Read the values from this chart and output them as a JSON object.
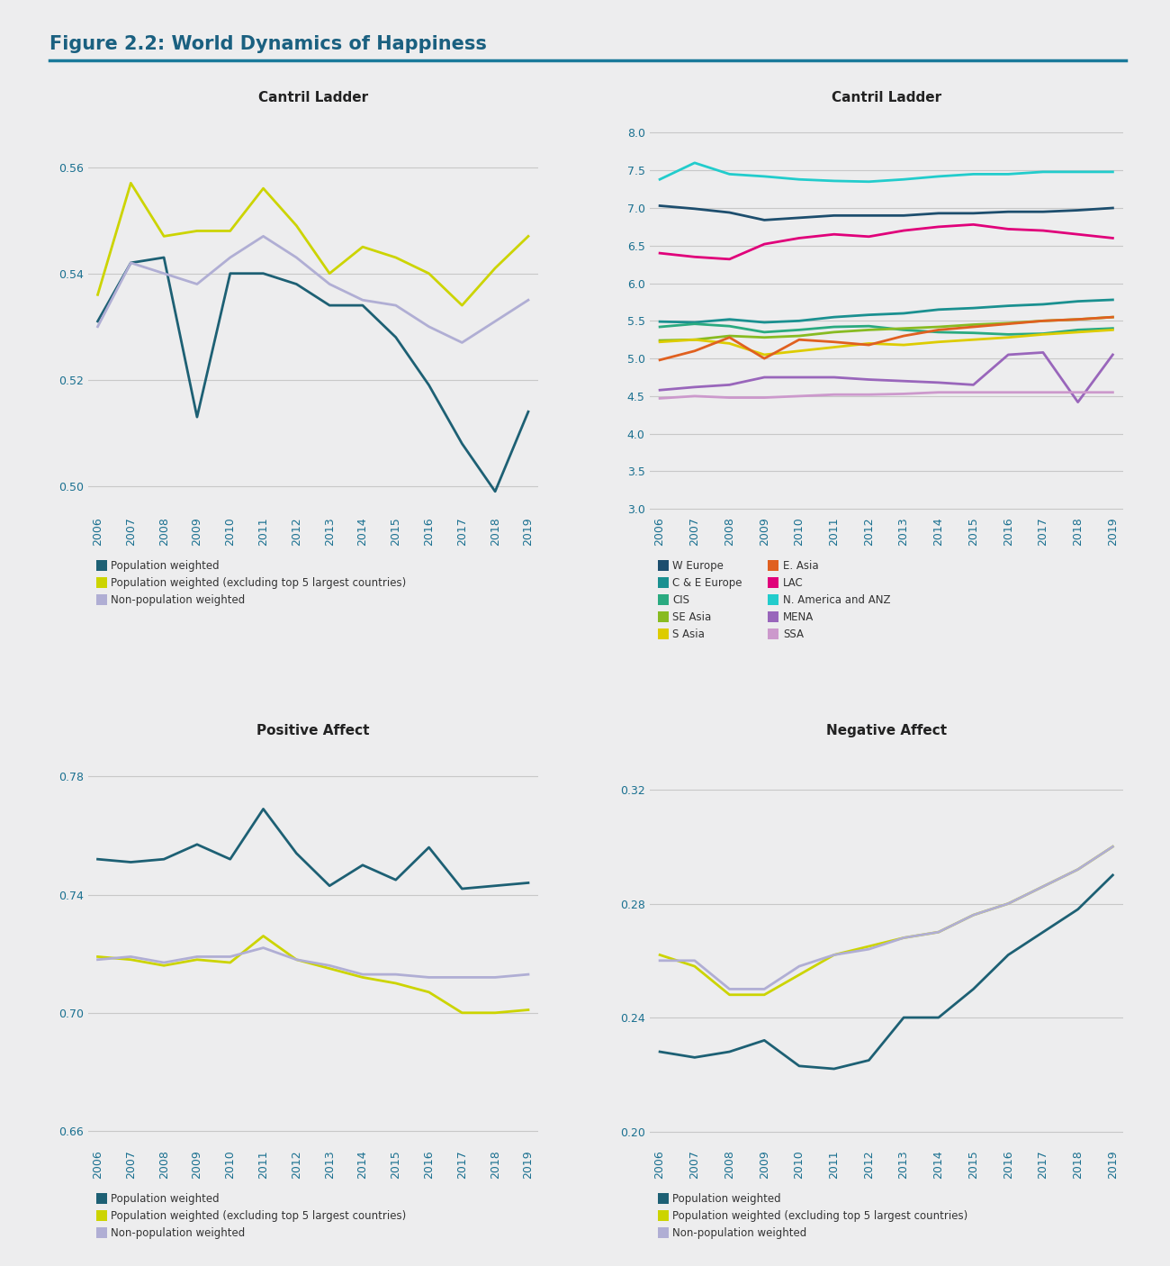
{
  "title": "Figure 2.2: World Dynamics of Happiness",
  "title_color": "#1a6080",
  "background_color": "#ededee",
  "plot_bg_color": "#ededee",
  "years_14": [
    2006,
    2007,
    2008,
    2009,
    2010,
    2011,
    2012,
    2013,
    2014,
    2015,
    2016,
    2017,
    2018,
    2019
  ],
  "cantril_left": {
    "title": "Cantril Ladder",
    "pop_weighted": [
      0.531,
      0.542,
      0.543,
      0.513,
      0.54,
      0.54,
      0.538,
      0.534,
      0.534,
      0.528,
      0.519,
      0.508,
      0.499,
      0.514
    ],
    "pop_weighted_ex5": [
      0.536,
      0.557,
      0.547,
      0.548,
      0.548,
      0.556,
      0.549,
      0.54,
      0.545,
      0.543,
      0.54,
      0.534,
      0.541,
      0.547
    ],
    "non_pop_weighted": [
      0.53,
      0.542,
      0.54,
      0.538,
      0.543,
      0.547,
      0.543,
      0.538,
      0.535,
      0.534,
      0.53,
      0.527,
      0.531,
      0.535
    ],
    "ylim": [
      0.495,
      0.57
    ],
    "yticks": [
      0.5,
      0.52,
      0.54,
      0.56
    ]
  },
  "cantril_right": {
    "title": "Cantril Ladder",
    "w_europe": [
      7.03,
      6.99,
      6.94,
      6.84,
      6.87,
      6.9,
      6.9,
      6.9,
      6.93,
      6.93,
      6.95,
      6.95,
      6.97,
      7.0
    ],
    "c_e_europe": [
      5.49,
      5.48,
      5.52,
      5.48,
      5.5,
      5.55,
      5.58,
      5.6,
      5.65,
      5.67,
      5.7,
      5.72,
      5.76,
      5.78
    ],
    "cis": [
      5.42,
      5.46,
      5.43,
      5.35,
      5.38,
      5.42,
      5.43,
      5.38,
      5.35,
      5.34,
      5.32,
      5.33,
      5.38,
      5.4
    ],
    "se_asia": [
      5.24,
      5.25,
      5.3,
      5.28,
      5.3,
      5.35,
      5.38,
      5.4,
      5.42,
      5.45,
      5.47,
      5.5,
      5.52,
      5.55
    ],
    "s_asia": [
      5.22,
      5.25,
      5.2,
      5.05,
      5.1,
      5.15,
      5.2,
      5.18,
      5.22,
      5.25,
      5.28,
      5.32,
      5.35,
      5.38
    ],
    "e_asia": [
      4.98,
      5.1,
      5.28,
      5.0,
      5.25,
      5.22,
      5.18,
      5.3,
      5.38,
      5.42,
      5.46,
      5.5,
      5.52,
      5.55
    ],
    "lac": [
      6.4,
      6.35,
      6.32,
      6.52,
      6.6,
      6.65,
      6.62,
      6.7,
      6.75,
      6.78,
      6.72,
      6.7,
      6.65,
      6.6
    ],
    "n_america_anz": [
      7.38,
      7.6,
      7.45,
      7.42,
      7.38,
      7.36,
      7.35,
      7.38,
      7.42,
      7.45,
      7.45,
      7.48,
      7.48,
      7.48
    ],
    "mena": [
      4.58,
      4.62,
      4.65,
      4.75,
      4.75,
      4.75,
      4.72,
      4.7,
      4.68,
      4.65,
      5.05,
      5.08,
      4.42,
      5.05
    ],
    "ssa": [
      4.47,
      4.5,
      4.48,
      4.48,
      4.5,
      4.52,
      4.52,
      4.53,
      4.55,
      4.55,
      4.55,
      4.55,
      4.55,
      4.55
    ],
    "ylim": [
      2.95,
      8.25
    ],
    "yticks": [
      3.0,
      3.5,
      4.0,
      4.5,
      5.0,
      5.5,
      6.0,
      6.5,
      7.0,
      7.5,
      8.0
    ]
  },
  "positive_affect": {
    "title": "Positive Affect",
    "pop_weighted": [
      0.752,
      0.751,
      0.752,
      0.757,
      0.752,
      0.769,
      0.754,
      0.743,
      0.75,
      0.745,
      0.756,
      0.742,
      0.743,
      0.744
    ],
    "pop_weighted_ex5": [
      0.719,
      0.718,
      0.716,
      0.718,
      0.717,
      0.726,
      0.718,
      0.715,
      0.712,
      0.71,
      0.707,
      0.7,
      0.7,
      0.701
    ],
    "non_pop_weighted": [
      0.718,
      0.719,
      0.717,
      0.719,
      0.719,
      0.722,
      0.718,
      0.716,
      0.713,
      0.713,
      0.712,
      0.712,
      0.712,
      0.713
    ],
    "ylim": [
      0.655,
      0.79
    ],
    "yticks": [
      0.66,
      0.7,
      0.74,
      0.78
    ]
  },
  "negative_affect": {
    "title": "Negative Affect",
    "pop_weighted": [
      0.228,
      0.226,
      0.228,
      0.232,
      0.223,
      0.222,
      0.225,
      0.24,
      0.24,
      0.25,
      0.262,
      0.27,
      0.278,
      0.29
    ],
    "pop_weighted_ex5": [
      0.262,
      0.258,
      0.248,
      0.248,
      0.255,
      0.262,
      0.265,
      0.268,
      0.27,
      0.276,
      0.28,
      0.286,
      0.292,
      0.3
    ],
    "non_pop_weighted": [
      0.26,
      0.26,
      0.25,
      0.25,
      0.258,
      0.262,
      0.264,
      0.268,
      0.27,
      0.276,
      0.28,
      0.286,
      0.292,
      0.3
    ],
    "ylim": [
      0.195,
      0.335
    ],
    "yticks": [
      0.2,
      0.24,
      0.28,
      0.32
    ]
  },
  "colors": {
    "pop_weighted": "#1d6074",
    "pop_weighted_ex5": "#ccd400",
    "non_pop_weighted": "#b0aed4",
    "w_europe": "#1d4e6e",
    "c_e_europe": "#1a9090",
    "cis": "#2aaa80",
    "se_asia": "#88bb22",
    "s_asia": "#ddcc00",
    "e_asia": "#e06020",
    "lac": "#e0007a",
    "n_america_anz": "#22cccc",
    "mena": "#9966bb",
    "ssa": "#cc99cc"
  },
  "legend_3": [
    {
      "label": "Population weighted",
      "color": "#1d6074"
    },
    {
      "label": "Population weighted (excluding top 5 largest countries)",
      "color": "#ccd400"
    },
    {
      "label": "Non-population weighted",
      "color": "#b0aed4"
    }
  ],
  "legend_regions_col1": [
    {
      "label": "W Europe",
      "color": "#1d4e6e"
    },
    {
      "label": "C & E Europe",
      "color": "#1a9090"
    },
    {
      "label": "CIS",
      "color": "#2aaa80"
    },
    {
      "label": "SE Asia",
      "color": "#88bb22"
    },
    {
      "label": "S Asia",
      "color": "#ddcc00"
    }
  ],
  "legend_regions_col2": [
    {
      "label": "E. Asia",
      "color": "#e06020"
    },
    {
      "label": "LAC",
      "color": "#e0007a"
    },
    {
      "label": "N. America and ANZ",
      "color": "#22cccc"
    },
    {
      "label": "MENA",
      "color": "#9966bb"
    },
    {
      "label": "SSA",
      "color": "#cc99cc"
    }
  ]
}
